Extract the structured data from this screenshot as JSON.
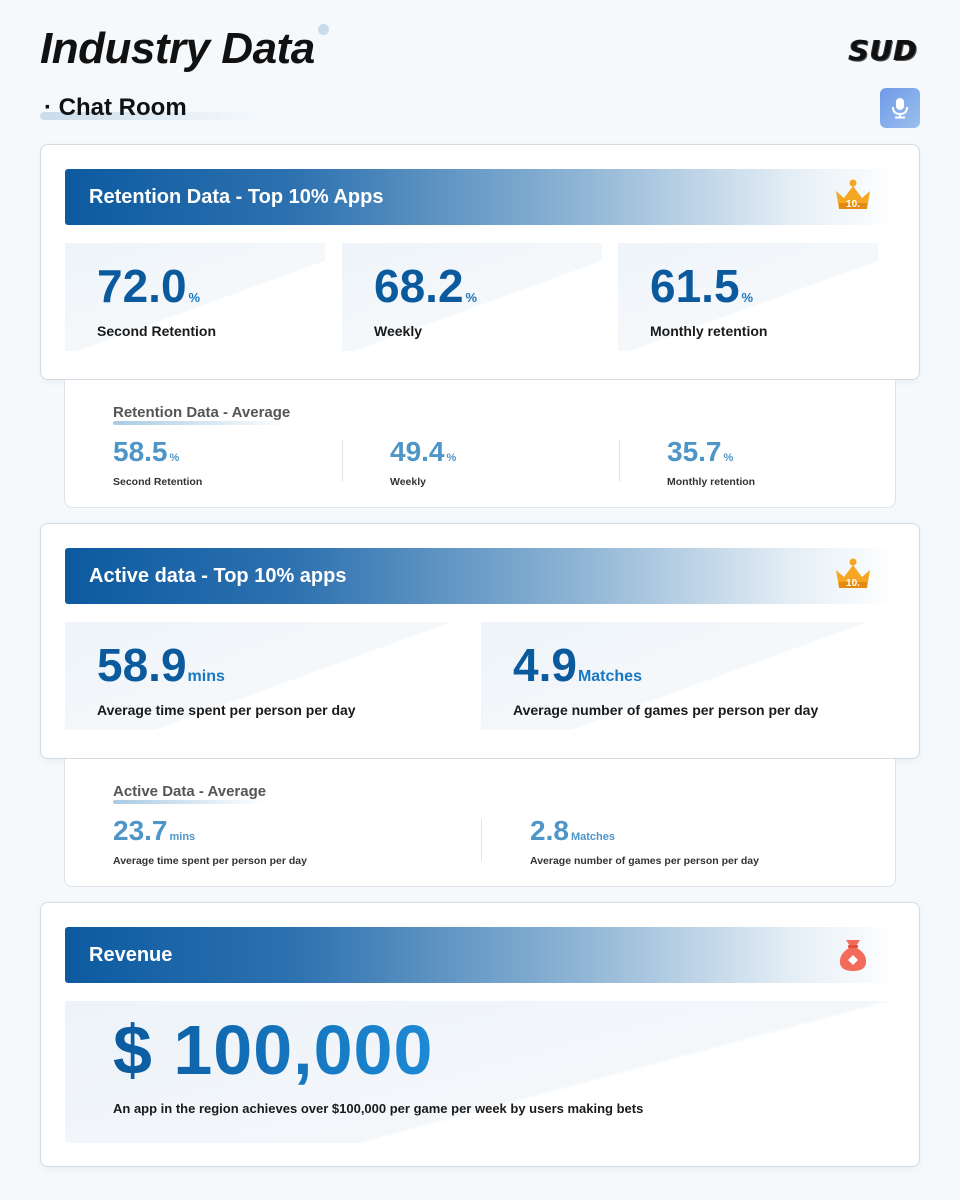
{
  "header": {
    "title": "Industry Data",
    "logo": "SUD",
    "subtitle": "· Chat Room",
    "mic_icon": "microphone-icon"
  },
  "retention_top": {
    "banner_title": "Retention Data - Top 10% Apps",
    "badge_icon": "crown-10-icon",
    "badge_text": "10.",
    "stats": [
      {
        "value": "72.0",
        "unit": "%",
        "label": "Second Retention"
      },
      {
        "value": "68.2",
        "unit": "%",
        "label": "Weekly"
      },
      {
        "value": "61.5",
        "unit": "%",
        "label": "Monthly retention"
      }
    ]
  },
  "retention_avg": {
    "title": "Retention Data - Average",
    "stats": [
      {
        "value": "58.5",
        "unit": "%",
        "label": "Second Retention"
      },
      {
        "value": "49.4",
        "unit": "%",
        "label": "Weekly"
      },
      {
        "value": "35.7",
        "unit": "%",
        "label": "Monthly retention"
      }
    ]
  },
  "active_top": {
    "banner_title": "Active data - Top 10% apps",
    "badge_icon": "crown-10-icon",
    "badge_text": "10.",
    "stats": [
      {
        "value": "58.9",
        "unit": "mins",
        "label": "Average time spent per person per day"
      },
      {
        "value": "4.9",
        "unit": "Matches",
        "label": "Average number of games per person per day"
      }
    ]
  },
  "active_avg": {
    "title": "Active Data - Average",
    "stats": [
      {
        "value": "23.7",
        "unit": "mins",
        "label": "Average time spent per person per day"
      },
      {
        "value": "2.8",
        "unit": "Matches",
        "label": "Average number of games per person per day"
      }
    ]
  },
  "revenue": {
    "banner_title": "Revenue",
    "badge_icon": "money-bag-icon",
    "value": "$ 100,000",
    "label": "An app in the region achieves over $100,000 per game per week by users making bets"
  },
  "colors": {
    "primary": "#0b5a9e",
    "accent": "#1977c1",
    "average": "#4e95c8",
    "crown": "#f5a623",
    "money_bag": "#f36b5a"
  }
}
